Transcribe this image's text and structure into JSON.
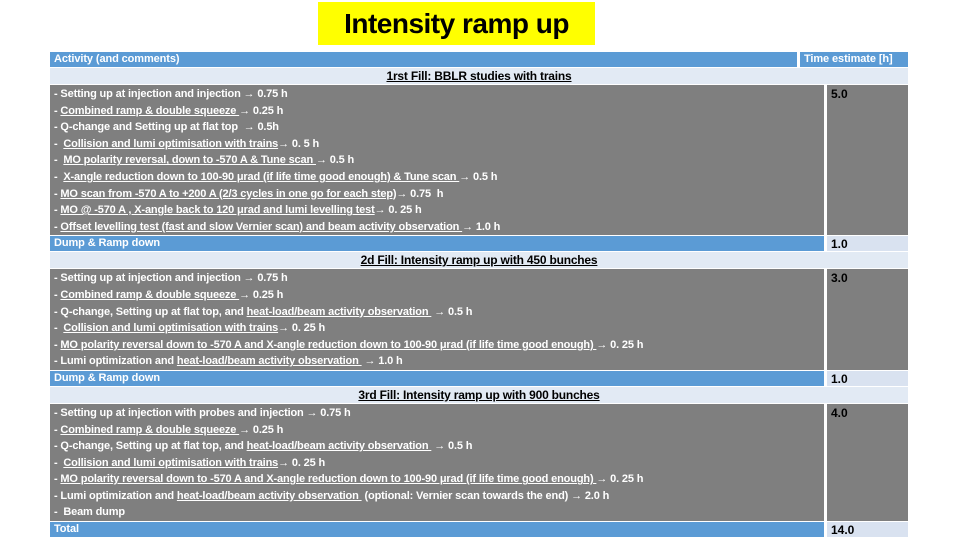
{
  "title": "Intensity ramp up",
  "colors": {
    "title_bg": "#ffff00",
    "header_blue": "#5b9bd5",
    "body_gray": "#7f7f7f",
    "light_blue": "#d9e2f0",
    "section_row": "#e2eaf4"
  },
  "table": {
    "header": {
      "activity": "Activity (and comments)",
      "time": "Time estimate [h]"
    },
    "sections": [
      {
        "fill_title": "1rst Fill: BBLR studies with trains",
        "time": "5.0",
        "items": [
          [
            {
              "t": "- Setting up at injection and injection → 0.75 h",
              "u": false
            }
          ],
          [
            {
              "t": "- ",
              "u": false
            },
            {
              "t": "Combined ramp & double squeeze ",
              "u": true
            },
            {
              "t": "→ 0.25 h",
              "u": false
            }
          ],
          [
            {
              "t": "- Q-change and Setting up at flat top  → 0.5h",
              "u": false
            }
          ],
          [
            {
              "t": "-  ",
              "u": false
            },
            {
              "t": "Collision and lumi optimisation with trains",
              "u": true
            },
            {
              "t": "→ 0. 5 h",
              "u": false
            }
          ],
          [
            {
              "t": "-  ",
              "u": false
            },
            {
              "t": "MO polarity reversal, down to -570 A & Tune scan ",
              "u": true
            },
            {
              "t": "→ 0.5 h",
              "u": false
            }
          ],
          [
            {
              "t": "-  ",
              "u": false
            },
            {
              "t": "X-angle reduction down to 100-90 μrad (if life time good enough) & Tune scan ",
              "u": true
            },
            {
              "t": "→ 0.5 h",
              "u": false
            }
          ],
          [
            {
              "t": "- ",
              "u": false
            },
            {
              "t": "MO scan from -570 A to +200 A (2/3 cycles in one go for each step)",
              "u": true
            },
            {
              "t": "→ 0.75  h",
              "u": false
            }
          ],
          [
            {
              "t": "- ",
              "u": false
            },
            {
              "t": "MO @ -570 A , X-angle back to 120 μrad and lumi levelling test",
              "u": true
            },
            {
              "t": "→ 0. 25 h",
              "u": false
            }
          ],
          [
            {
              "t": "- ",
              "u": false
            },
            {
              "t": "Offset levelling test (fast and slow Vernier scan) and beam activity observation ",
              "u": true
            },
            {
              "t": "→ 1.0 h",
              "u": false
            }
          ]
        ],
        "footer": {
          "label": "Dump & Ramp down",
          "time": "1.0"
        }
      },
      {
        "fill_title": "2d Fill: Intensity ramp up with 450 bunches",
        "time": "3.0",
        "items": [
          [
            {
              "t": "- Setting up at injection and injection → 0.75 h",
              "u": false
            }
          ],
          [
            {
              "t": "- ",
              "u": false
            },
            {
              "t": "Combined ramp & double squeeze ",
              "u": true
            },
            {
              "t": "→ 0.25 h",
              "u": false
            }
          ],
          [
            {
              "t": "- Q-change, Setting up at flat top, and ",
              "u": false
            },
            {
              "t": "heat-load/beam activity observation ",
              "u": true
            },
            {
              "t": " → 0.5 h",
              "u": false
            }
          ],
          [
            {
              "t": "-  ",
              "u": false
            },
            {
              "t": "Collision and lumi optimisation with trains",
              "u": true
            },
            {
              "t": "→ 0. 25 h",
              "u": false
            }
          ],
          [
            {
              "t": "- ",
              "u": false
            },
            {
              "t": "MO polarity reversal down to -570 A and X-angle reduction down to 100-90 μrad (if life time good enough) ",
              "u": true
            },
            {
              "t": "→ 0. 25 h",
              "u": false
            }
          ],
          [
            {
              "t": "- Lumi optimization and ",
              "u": false
            },
            {
              "t": "heat-load/beam activity observation ",
              "u": true
            },
            {
              "t": " → 1.0 h",
              "u": false
            }
          ]
        ],
        "footer": {
          "label": "Dump & Ramp down",
          "time": "1.0"
        }
      },
      {
        "fill_title": "3rd Fill: Intensity ramp up with 900 bunches",
        "time": "4.0",
        "items": [
          [
            {
              "t": "- Setting up at injection with probes and injection → 0.75 h",
              "u": false
            }
          ],
          [
            {
              "t": "- ",
              "u": false
            },
            {
              "t": "Combined ramp & double squeeze ",
              "u": true
            },
            {
              "t": "→ 0.25 h",
              "u": false
            }
          ],
          [
            {
              "t": "- Q-change, Setting up at flat top, and ",
              "u": false
            },
            {
              "t": "heat-load/beam activity observation ",
              "u": true
            },
            {
              "t": " → 0.5 h",
              "u": false
            }
          ],
          [
            {
              "t": "-  ",
              "u": false
            },
            {
              "t": "Collision and lumi optimisation with trains",
              "u": true
            },
            {
              "t": "→ 0. 25 h",
              "u": false
            }
          ],
          [
            {
              "t": "- ",
              "u": false
            },
            {
              "t": "MO polarity reversal down to -570 A and X-angle reduction down to 100-90 μrad (if life time good enough) ",
              "u": true
            },
            {
              "t": "→ 0. 25 h",
              "u": false
            }
          ],
          [
            {
              "t": "- Lumi optimization and ",
              "u": false
            },
            {
              "t": "heat-load/beam activity observation ",
              "u": true
            },
            {
              "t": " (optional: Vernier scan towards the end) → 2.0 h",
              "u": false
            }
          ],
          [
            {
              "t": "-  Beam dump",
              "u": false
            }
          ]
        ],
        "footer": null
      }
    ],
    "total": {
      "label": "Total",
      "time": "14.0"
    }
  }
}
